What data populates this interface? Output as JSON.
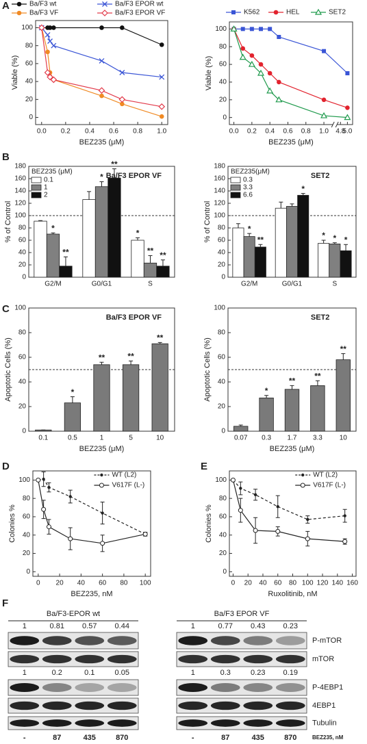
{
  "panel_labels": [
    "A",
    "B",
    "C",
    "D",
    "E",
    "F"
  ],
  "chart_data": [
    {
      "type": "line",
      "ylabel": "Viable (%)",
      "xlabel": "BEZ235 (μM)",
      "legend": "top",
      "x": [
        0,
        0.05,
        0.07,
        0.1,
        0.5,
        0.67,
        1.0
      ],
      "xlim": [
        -0.05,
        1.05
      ],
      "xticks": [
        {
          "value": 0,
          "label": "0.0"
        },
        0.2,
        0.4,
        0.6,
        0.8,
        {
          "value": 1,
          "label": "1.0"
        }
      ],
      "ylim": [
        -8,
        108
      ],
      "yticks": [
        0,
        20,
        40,
        60,
        80,
        100
      ],
      "series": [
        {
          "name": "Ba/F3 wt",
          "color": "#111111",
          "marker": "circle",
          "values": [
            100,
            100,
            100,
            100,
            100,
            100,
            81
          ]
        },
        {
          "name": "Ba/F3 EPOR wt",
          "color": "#3a55d6",
          "marker": "x",
          "values": [
            100,
            92,
            85,
            80,
            63,
            50,
            45
          ]
        },
        {
          "name": "Ba/F3 VF",
          "color": "#f08a24",
          "marker": "circle",
          "values": [
            100,
            73,
            50,
            42,
            24,
            15,
            1
          ]
        },
        {
          "name": "Ba/F3 EPOR VF",
          "color": "#e23a4a",
          "marker": "diamond",
          "values": [
            100,
            50,
            45,
            42,
            30,
            20,
            12
          ]
        }
      ]
    },
    {
      "type": "line",
      "ylabel": "Viable (%)",
      "xlabel": "BEZ235 (μM)",
      "legend": "top",
      "x": [
        0,
        0.1,
        0.2,
        0.3,
        0.4,
        0.5,
        1.0,
        5.0
      ],
      "xlim": [
        -0.05,
        5.15
      ],
      "xbreak": [
        1.1,
        4.7
      ],
      "xticks": [
        {
          "value": 0,
          "label": "0.0"
        },
        0.2,
        0.4,
        0.6,
        0.8,
        {
          "value": 1,
          "label": "1.0"
        },
        4.8,
        {
          "value": 5,
          "label": "5.0"
        }
      ],
      "ylim": [
        -8,
        108
      ],
      "yticks": [
        0,
        20,
        40,
        60,
        80,
        100
      ],
      "series": [
        {
          "name": "K562",
          "color": "#3a55d6",
          "marker": "square",
          "values": [
            100,
            100,
            100,
            100,
            100,
            91,
            75,
            50
          ]
        },
        {
          "name": "HEL",
          "color": "#e2232e",
          "marker": "circle",
          "values": [
            100,
            78,
            70,
            60,
            50,
            40,
            20,
            11
          ]
        },
        {
          "name": "SET2",
          "color": "#1f9a4c",
          "marker": "triangle",
          "values": [
            100,
            68,
            60,
            50,
            30,
            20,
            2,
            0
          ]
        }
      ]
    },
    {
      "type": "bar",
      "title": "Ba/F3 EPOR VF",
      "ylabel": "% of Control",
      "legend": "upper-left",
      "legend_title": "BEZ235 (μM)",
      "categories": [
        "G2/M",
        "G0/G1",
        "S"
      ],
      "ylim": [
        0,
        180
      ],
      "yticks": [
        0,
        20,
        40,
        60,
        80,
        100,
        120,
        140,
        160,
        180
      ],
      "refline": 100,
      "series": [
        {
          "name": "0.1",
          "color": "#ffffff",
          "values": [
            91,
            126,
            60
          ],
          "errors": [
            1,
            13,
            4
          ],
          "annotations": [
            null,
            null,
            "*"
          ]
        },
        {
          "name": "1",
          "color": "#808080",
          "values": [
            70,
            147,
            23
          ],
          "errors": [
            2,
            8,
            12
          ],
          "annotations": [
            "*",
            "*",
            "**"
          ]
        },
        {
          "name": "2",
          "color": "#111111",
          "values": [
            18,
            161,
            18
          ],
          "errors": [
            15,
            15,
            10
          ],
          "annotations": [
            "**",
            "**",
            "**"
          ]
        }
      ]
    },
    {
      "type": "bar",
      "title": "SET2",
      "ylabel": "% of Control",
      "legend": "upper-left",
      "legend_title": "BEZ235(μM)",
      "categories": [
        "G2/M",
        "G0/G1",
        "S"
      ],
      "ylim": [
        0,
        180
      ],
      "yticks": [
        0,
        20,
        40,
        60,
        80,
        100,
        120,
        140,
        160,
        180
      ],
      "refline": 100,
      "series": [
        {
          "name": "0.3",
          "color": "#ffffff",
          "values": [
            80,
            112,
            55
          ],
          "errors": [
            7,
            10,
            5
          ],
          "annotations": [
            null,
            null,
            "*"
          ]
        },
        {
          "name": "3.3",
          "color": "#808080",
          "values": [
            66,
            115,
            54
          ],
          "errors": [
            5,
            4,
            2
          ],
          "annotations": [
            "*",
            null,
            "*"
          ]
        },
        {
          "name": "6.6",
          "color": "#111111",
          "values": [
            49,
            133,
            43
          ],
          "errors": [
            4,
            3,
            10
          ],
          "annotations": [
            "**",
            "*",
            "*"
          ]
        }
      ]
    },
    {
      "type": "bar",
      "title": "Ba/F3 EPOR VF",
      "ylabel": "Apoptotic Cells (%)",
      "xlabel": "BEZ235 (μM)",
      "categories": [
        "0.1",
        "0.5",
        "1",
        "5",
        "10"
      ],
      "ylim": [
        0,
        100
      ],
      "yticks": [
        0,
        20,
        40,
        60,
        80,
        100
      ],
      "refline": 50,
      "series": [
        {
          "color": "#7a7a7a",
          "values": [
            1,
            23,
            54,
            54,
            71
          ],
          "errors": [
            0,
            5,
            2,
            3,
            1
          ],
          "annotations": [
            null,
            "*",
            "**",
            "**",
            "**"
          ]
        }
      ]
    },
    {
      "type": "bar",
      "title": "SET2",
      "ylabel": "Apoptotic Cells (%)",
      "xlabel": "BEZ235 (μM)",
      "categories": [
        "0.07",
        "0.3",
        "1.7",
        "3.3",
        "10"
      ],
      "ylim": [
        0,
        100
      ],
      "yticks": [
        0,
        20,
        40,
        60,
        80,
        100
      ],
      "refline": 50,
      "series": [
        {
          "color": "#7a7a7a",
          "values": [
            4,
            27,
            34,
            37,
            58
          ],
          "errors": [
            1,
            2,
            3,
            4,
            5
          ],
          "annotations": [
            null,
            "*",
            "**",
            "**",
            "**"
          ]
        }
      ]
    },
    {
      "type": "line",
      "ylabel": "Colonies %",
      "xlabel": "BEZ235, nM",
      "legend": "upper-right",
      "x": [
        0,
        5,
        10,
        30,
        60,
        100
      ],
      "xlim": [
        -5,
        105
      ],
      "xticks": [
        0,
        20,
        40,
        60,
        80,
        100
      ],
      "ylim": [
        -5,
        110
      ],
      "yticks": [
        0,
        20,
        40,
        60,
        80,
        100
      ],
      "series": [
        {
          "name": "WT (L2)",
          "color": "#222222",
          "marker": "dot",
          "dash": true,
          "values": [
            100,
            101,
            92,
            82,
            64,
            41
          ],
          "errors": [
            0,
            8,
            5,
            7,
            12,
            2
          ]
        },
        {
          "name": "V617F (L-)",
          "color": "#222222",
          "marker": "open-circle",
          "values": [
            100,
            68,
            49,
            36,
            31,
            41
          ],
          "errors": [
            0,
            10,
            8,
            12,
            9,
            2
          ]
        }
      ]
    },
    {
      "type": "line",
      "ylabel": "Colonies %",
      "xlabel": "Ruxolitinib, nM",
      "legend": "upper-right",
      "x": [
        0,
        10,
        30,
        60,
        100,
        150
      ],
      "xlim": [
        -5,
        165
      ],
      "xticks": [
        0,
        20,
        40,
        60,
        80,
        100,
        120,
        140,
        160
      ],
      "ylim": [
        -5,
        110
      ],
      "yticks": [
        0,
        20,
        40,
        60,
        80,
        100
      ],
      "series": [
        {
          "name": "WT (L2)",
          "color": "#222222",
          "marker": "dot",
          "dash": true,
          "values": [
            100,
            91,
            84,
            71,
            57,
            61
          ],
          "errors": [
            0,
            7,
            6,
            12,
            4,
            7
          ]
        },
        {
          "name": "V617F (L-)",
          "color": "#222222",
          "marker": "open-circle",
          "values": [
            100,
            67,
            45,
            44,
            36,
            33
          ],
          "errors": [
            0,
            13,
            14,
            5,
            8,
            3
          ]
        }
      ]
    }
  ],
  "blot": {
    "groups": [
      {
        "title": "Ba/F3-EPOR wt",
        "quant_1": [
          "1",
          "0.81",
          "0.57",
          "0.44"
        ],
        "quant_2": [
          "1",
          "0.2",
          "0.1",
          "0.05"
        ]
      },
      {
        "title": "Ba/F3 EPOR VF",
        "quant_1": [
          "1",
          "0.77",
          "0.43",
          "0.23"
        ],
        "quant_2": [
          "1",
          "0.3",
          "0.23",
          "0.19"
        ]
      }
    ],
    "rows": [
      "P-mTOR",
      "mTOR",
      "P-4EBP1",
      "4EBP1",
      "Tubulin"
    ],
    "lanes": [
      "-",
      "87",
      "435",
      "870"
    ],
    "lane_unit": "BEZ235, nM"
  }
}
